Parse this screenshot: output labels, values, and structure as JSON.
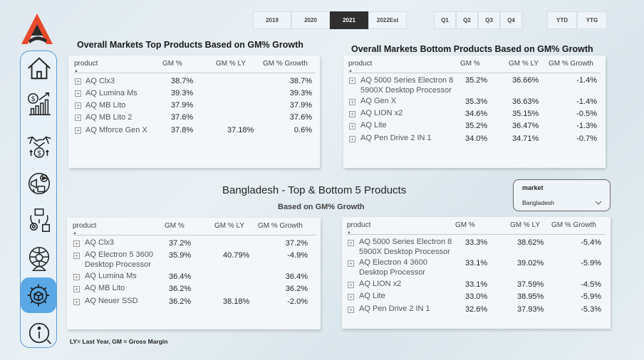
{
  "years": [
    {
      "label": "2019",
      "selected": false
    },
    {
      "label": "2020",
      "selected": false
    },
    {
      "label": "2021",
      "selected": true
    },
    {
      "label": "2022Est",
      "selected": false
    }
  ],
  "quarters": [
    "Q1",
    "Q2",
    "Q3",
    "Q4"
  ],
  "periods": [
    "YTD",
    "YTG"
  ],
  "sidebar": {
    "icons": [
      "home-icon",
      "finance-growth-icon",
      "partnership-money-icon",
      "marketing-icon",
      "supply-chain-icon",
      "executive-icon",
      "settings-icon",
      "info-icon"
    ],
    "active": "settings-icon"
  },
  "top_overall": {
    "title": "Overall Markets Top Products Based on GM% Growth",
    "headers": [
      "product",
      "GM %",
      "GM % LY",
      "GM % Growth"
    ],
    "rows": [
      {
        "product": "AQ Clx3",
        "gm": "38.7%",
        "ly": "",
        "growth": "38.7%"
      },
      {
        "product": "AQ Lumina Ms",
        "gm": "39.3%",
        "ly": "",
        "growth": "39.3%"
      },
      {
        "product": "AQ MB Lito",
        "gm": "37.9%",
        "ly": "",
        "growth": "37.9%"
      },
      {
        "product": "AQ MB Lito 2",
        "gm": "37.6%",
        "ly": "",
        "growth": "37.6%"
      },
      {
        "product": "AQ Mforce Gen X",
        "gm": "37.8%",
        "ly": "37.18%",
        "growth": "0.6%"
      }
    ]
  },
  "bottom_overall": {
    "title": "Overall Markets Bottom Products Based on GM% Growth",
    "headers": [
      "product",
      "GM %",
      "GM % LY",
      "GM % Growth"
    ],
    "rows": [
      {
        "product": "AQ 5000 Series Electron 8",
        "product2": "5900X Desktop Processor",
        "gm": "35.2%",
        "ly": "36.66%",
        "growth": "-1.4%"
      },
      {
        "product": "AQ Gen X",
        "gm": "35.3%",
        "ly": "36.63%",
        "growth": "-1.4%"
      },
      {
        "product": "AQ LION x2",
        "gm": "34.6%",
        "ly": "35.15%",
        "growth": "-0.5%"
      },
      {
        "product": "AQ Lite",
        "gm": "35.2%",
        "ly": "36.47%",
        "growth": "-1.3%"
      },
      {
        "product": "AQ Pen Drive 2 IN 1",
        "gm": "34.0%",
        "ly": "34.71%",
        "growth": "-0.7%"
      }
    ]
  },
  "center": {
    "title": "Bangladesh - Top & Bottom 5 Products",
    "subtitle": "Based on GM%  Growth"
  },
  "market_slicer": {
    "label": "market",
    "value": "Bangladesh"
  },
  "top_bd": {
    "headers": [
      "product",
      "GM %",
      "GM % LY",
      "GM % Growth"
    ],
    "rows": [
      {
        "product": "AQ Clx3",
        "gm": "37.2%",
        "ly": "",
        "growth": "37.2%"
      },
      {
        "product": "AQ Electron 5 3600",
        "product2": "Desktop Processor",
        "gm": "35.9%",
        "ly": "40.79%",
        "growth": "-4.9%"
      },
      {
        "product": "AQ Lumina Ms",
        "gm": "36.4%",
        "ly": "",
        "growth": "36.4%"
      },
      {
        "product": "AQ MB Lito",
        "gm": "36.2%",
        "ly": "",
        "growth": "36.2%"
      },
      {
        "product": "AQ Neuer SSD",
        "gm": "36.2%",
        "ly": "38.18%",
        "growth": "-2.0%"
      }
    ]
  },
  "bottom_bd": {
    "headers": [
      "product",
      "GM %",
      "GM % LY",
      "GM % Growth"
    ],
    "rows": [
      {
        "product": "AQ 5000 Series Electron 8",
        "product2": "5900X Desktop Processor",
        "gm": "33.3%",
        "ly": "38.62%",
        "growth": "-5.4%"
      },
      {
        "product": "AQ Electron 4 3600",
        "product2": "Desktop Processor",
        "gm": "33.1%",
        "ly": "39.02%",
        "growth": "-5.9%"
      },
      {
        "product": "AQ LION x2",
        "gm": "33.1%",
        "ly": "37.59%",
        "growth": "-4.5%"
      },
      {
        "product": "AQ Lite",
        "gm": "33.0%",
        "ly": "38.95%",
        "growth": "-5.9%"
      },
      {
        "product": "AQ Pen Drive 2 IN 1",
        "gm": "32.6%",
        "ly": "37.93%",
        "growth": "-5.3%"
      }
    ]
  },
  "footnote": "LY= Last Year, GM = Gross Margin",
  "colors": {
    "accent": "#e8482c",
    "active_nav": "#5aa8e6",
    "selected_year": "#2f2f2f"
  }
}
